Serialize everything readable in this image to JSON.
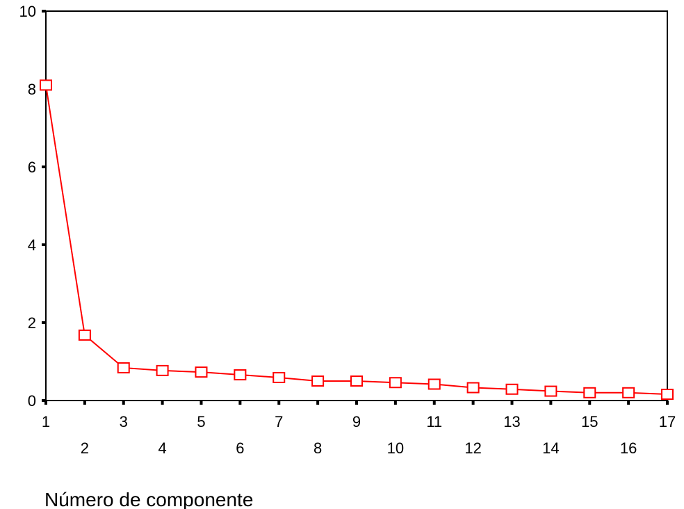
{
  "chart_data": {
    "type": "line",
    "title": "",
    "xlabel": "Número de componente",
    "ylabel": "",
    "x": [
      1,
      2,
      3,
      4,
      5,
      6,
      7,
      8,
      9,
      10,
      11,
      12,
      13,
      14,
      15,
      16,
      17
    ],
    "series": [
      {
        "values": [
          8.1,
          1.68,
          0.84,
          0.77,
          0.73,
          0.66,
          0.59,
          0.5,
          0.5,
          0.46,
          0.42,
          0.33,
          0.29,
          0.24,
          0.2,
          0.2,
          0.16
        ]
      }
    ],
    "xlim": [
      1,
      17
    ],
    "ylim": [
      0,
      10
    ],
    "y_ticks": [
      0,
      2,
      4,
      6,
      8,
      10
    ],
    "x_tick_labels_row1": [
      "1",
      "3",
      "5",
      "7",
      "9",
      "11",
      "13",
      "15",
      "17"
    ],
    "x_tick_labels_row2": [
      "2",
      "4",
      "6",
      "8",
      "10",
      "12",
      "14",
      "16"
    ],
    "grid": false,
    "legend": "none",
    "line_color": "#ff0000",
    "marker": "square-open"
  }
}
